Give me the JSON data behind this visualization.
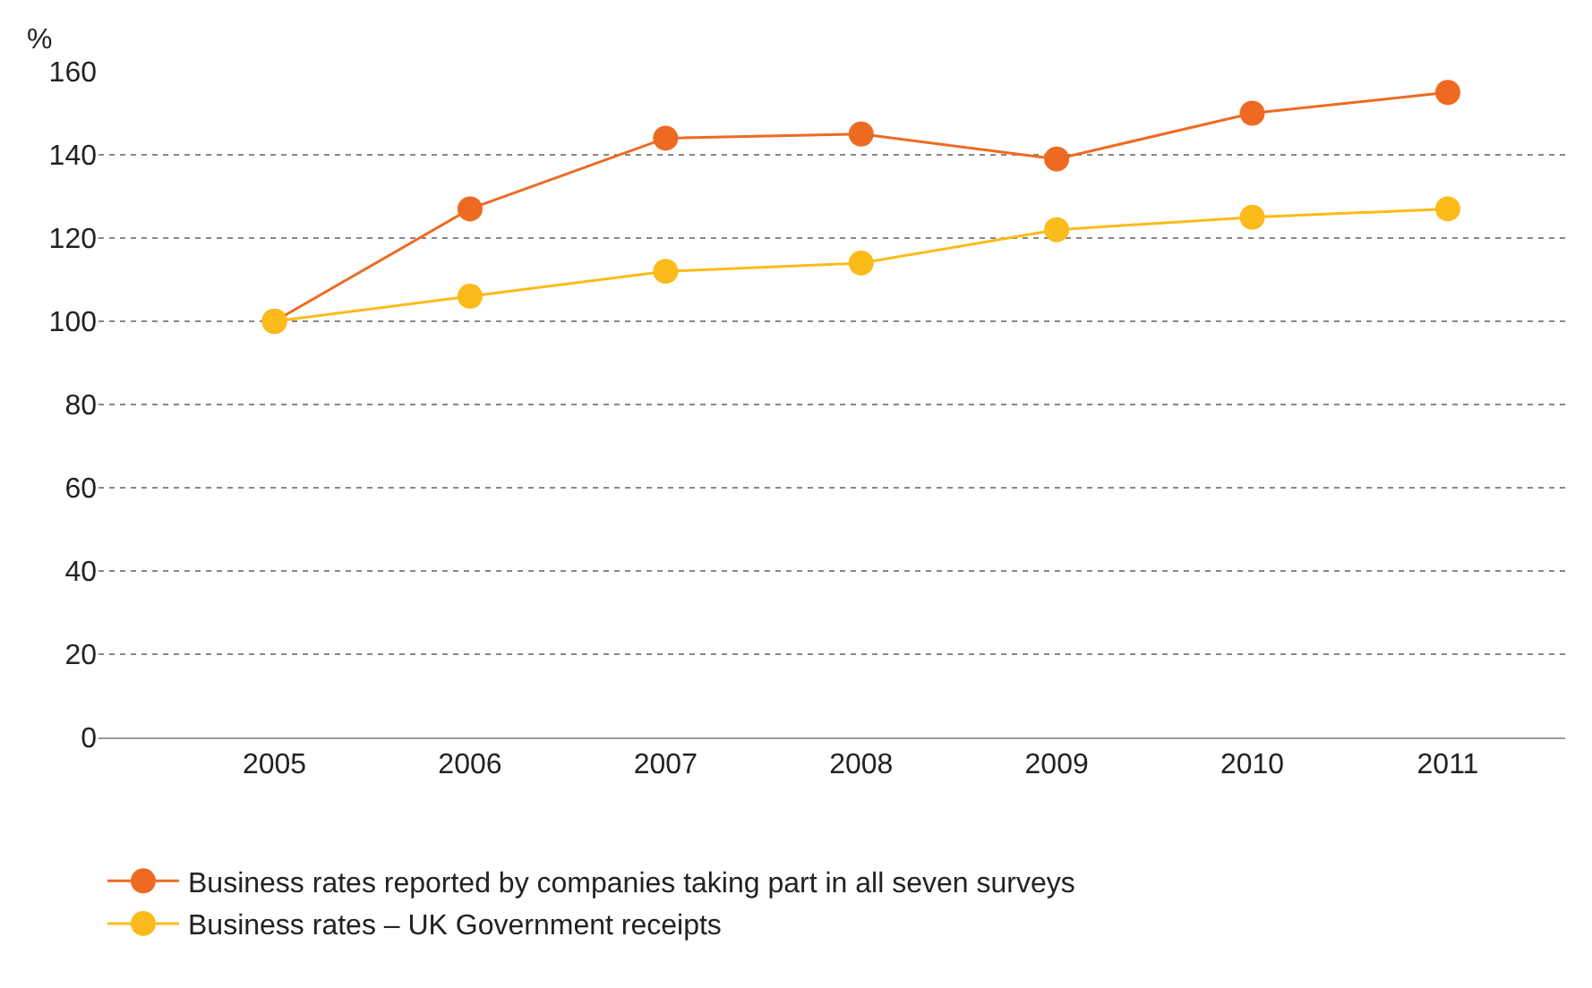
{
  "chart_data": {
    "type": "line",
    "ylabel": "%",
    "categories": [
      "2005",
      "2006",
      "2007",
      "2008",
      "2009",
      "2010",
      "2011"
    ],
    "series": [
      {
        "name": "Business rates reported by companies taking part in all seven surveys",
        "color": "#ee6a22",
        "values": [
          100,
          127,
          144,
          145,
          139,
          150,
          155
        ]
      },
      {
        "name": "Business rates – UK Government receipts",
        "color": "#fbbb1a",
        "values": [
          100,
          106,
          112,
          114,
          122,
          125,
          127
        ]
      }
    ],
    "ylim": [
      0,
      160
    ],
    "yticks": [
      0,
      20,
      40,
      60,
      80,
      100,
      120,
      140,
      160
    ],
    "grid": "y",
    "legend": "bottom",
    "marker": "circle",
    "line_style": "solid"
  }
}
